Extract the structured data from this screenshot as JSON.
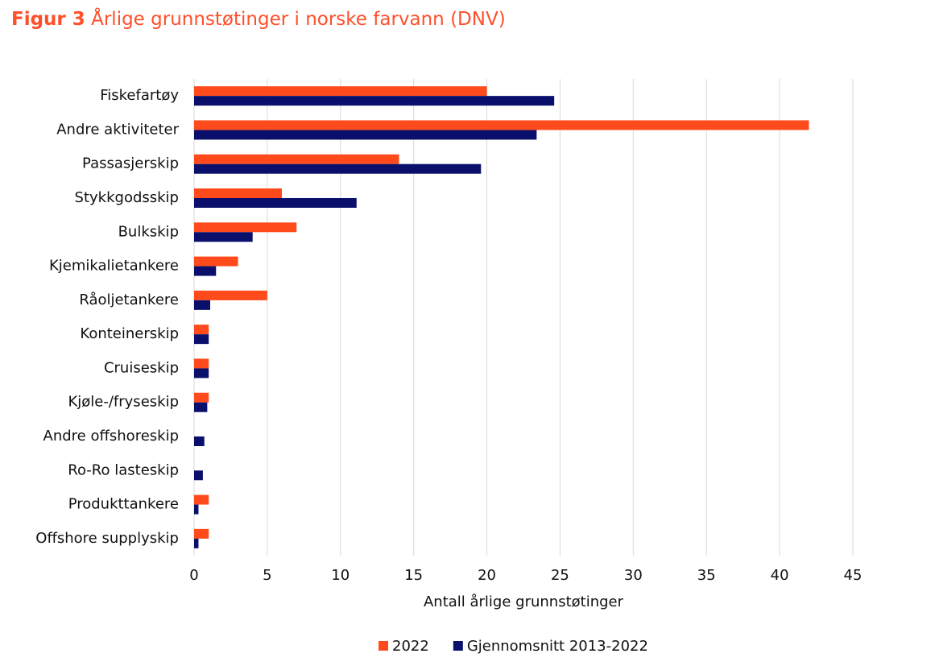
{
  "chart_data": {
    "type": "bar",
    "orientation": "horizontal",
    "title_label": "Figur 3",
    "title": "Årlige grunnstøtinger i norske farvann (DNV)",
    "x_label": "Antall årlige grunnstøtinger",
    "categories": [
      "Fiskefartøy",
      "Andre aktiviteter",
      "Passasjerskip",
      "Stykkgodsskip",
      "Bulkskip",
      "Kjemikalietankere",
      "Råoljetankere",
      "Konteinerskip",
      "Cruiseskip",
      "Kjøle-/fryseskip",
      "Andre offshoreskip",
      "Ro-Ro lasteskip",
      "Produkttankere",
      "Offshore supplyskip"
    ],
    "series": [
      {
        "name": "2022",
        "color": "#ff4a1c",
        "values": [
          20,
          42,
          14,
          6,
          7,
          3,
          5,
          1,
          1,
          1,
          0,
          0,
          1,
          1
        ]
      },
      {
        "name": "Gjennomsnitt 2013-2022",
        "color": "#0a0f6b",
        "values": [
          24.6,
          23.4,
          19.6,
          11.1,
          4,
          1.5,
          1.1,
          1,
          1,
          0.9,
          0.7,
          0.6,
          0.3,
          0.3
        ]
      }
    ],
    "xlim": [
      0,
      45
    ],
    "xticks": [
      0,
      5,
      10,
      15,
      20,
      25,
      30,
      35,
      40,
      45
    ],
    "grid": true,
    "legend": "bottom"
  }
}
